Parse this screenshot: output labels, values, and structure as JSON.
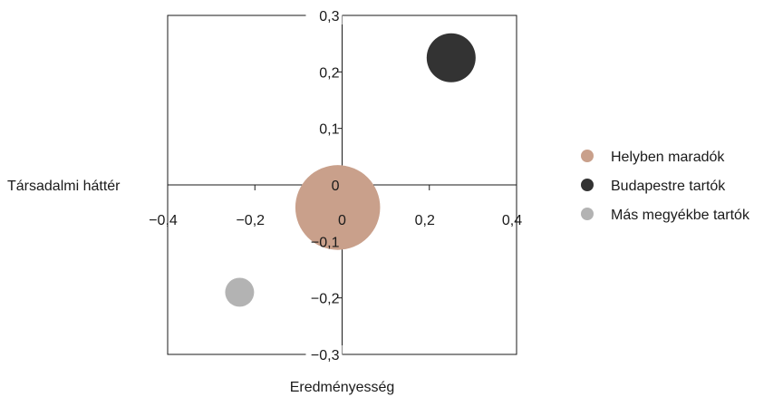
{
  "chart_data": {
    "type": "scatter",
    "title": "",
    "xlabel": "Eredményesség",
    "ylabel": "Társadalmi háttér",
    "xlim": [
      -0.4,
      0.4
    ],
    "ylim": [
      -0.3,
      0.3
    ],
    "x_ticks": [
      "−0,4",
      "−0,2",
      "0",
      "0,2",
      "0,4"
    ],
    "y_ticks": [
      "0,3",
      "0,2",
      "0,1",
      "0",
      "−0,1",
      "−0,2",
      "−0,3"
    ],
    "grid": false,
    "legend_position": "right",
    "series": [
      {
        "name": "Helyben maradók",
        "x": -0.01,
        "y": -0.04,
        "size": 3,
        "color": "#c9a08b"
      },
      {
        "name": "Budapestre tartók",
        "x": 0.25,
        "y": 0.225,
        "size": 1,
        "color": "#333333"
      },
      {
        "name": "Más megyékbe tartók",
        "x": -0.235,
        "y": -0.19,
        "size": 0.35,
        "color": "#b3b3b3"
      }
    ]
  }
}
